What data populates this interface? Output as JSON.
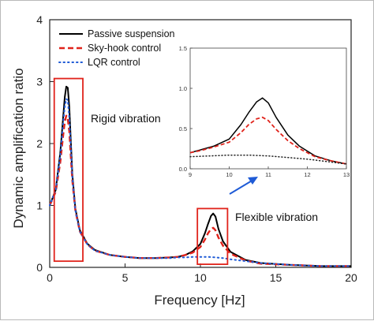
{
  "chart_data": [
    {
      "type": "line",
      "xlabel": "Frequency [Hz]",
      "ylabel": "Dynamic amplification ratio",
      "xlim": [
        0,
        20
      ],
      "ylim": [
        0,
        4
      ],
      "x_ticks": [
        "0",
        "5",
        "10",
        "15",
        "20"
      ],
      "y_ticks": [
        "0",
        "1",
        "2",
        "3",
        "4"
      ],
      "grid": false,
      "legend_position": "top-left",
      "series": [
        {
          "name": "Passive suspension",
          "style": "solid",
          "color": "#000000",
          "x": [
            0,
            0.4,
            0.7,
            0.9,
            1.0,
            1.1,
            1.2,
            1.3,
            1.4,
            1.5,
            1.7,
            2.0,
            2.5,
            3,
            4,
            5,
            6,
            7,
            8,
            8.5,
            9,
            9.5,
            10,
            10.3,
            10.5,
            10.7,
            10.85,
            11.0,
            11.2,
            11.5,
            12,
            13,
            14,
            16,
            18,
            20
          ],
          "y": [
            1.0,
            1.25,
            1.85,
            2.45,
            2.75,
            2.92,
            2.9,
            2.6,
            2.05,
            1.5,
            0.95,
            0.6,
            0.38,
            0.28,
            0.2,
            0.17,
            0.15,
            0.15,
            0.16,
            0.17,
            0.2,
            0.26,
            0.38,
            0.55,
            0.7,
            0.83,
            0.87,
            0.82,
            0.62,
            0.42,
            0.25,
            0.12,
            0.07,
            0.04,
            0.02,
            0.02
          ]
        },
        {
          "name": "Sky-hook control",
          "style": "dashed",
          "color": "#e0231b",
          "x": [
            0,
            0.4,
            0.7,
            0.9,
            1.0,
            1.1,
            1.2,
            1.3,
            1.4,
            1.5,
            1.7,
            2.0,
            2.5,
            3,
            4,
            5,
            6,
            7,
            8,
            8.5,
            9,
            9.5,
            10,
            10.3,
            10.5,
            10.7,
            10.85,
            11.0,
            11.2,
            11.5,
            12,
            13,
            14,
            16,
            18,
            20
          ],
          "y": [
            1.0,
            1.22,
            1.7,
            2.15,
            2.35,
            2.45,
            2.4,
            2.2,
            1.8,
            1.4,
            0.92,
            0.58,
            0.37,
            0.27,
            0.2,
            0.17,
            0.15,
            0.15,
            0.16,
            0.17,
            0.2,
            0.24,
            0.33,
            0.45,
            0.55,
            0.62,
            0.64,
            0.6,
            0.48,
            0.35,
            0.22,
            0.11,
            0.06,
            0.04,
            0.02,
            0.02
          ]
        },
        {
          "name": "LQR control",
          "style": "dotted",
          "color": "#1f5bd6",
          "x": [
            0,
            0.4,
            0.7,
            0.9,
            1.0,
            1.1,
            1.2,
            1.3,
            1.4,
            1.5,
            1.7,
            2.0,
            2.5,
            3,
            4,
            5,
            6,
            7,
            8,
            8.5,
            9,
            9.5,
            10,
            10.5,
            11,
            11.5,
            12,
            13,
            14,
            16,
            18,
            20
          ],
          "y": [
            1.0,
            1.25,
            1.8,
            2.35,
            2.6,
            2.72,
            2.7,
            2.42,
            1.95,
            1.45,
            0.92,
            0.58,
            0.37,
            0.27,
            0.2,
            0.17,
            0.15,
            0.15,
            0.15,
            0.16,
            0.16,
            0.17,
            0.17,
            0.17,
            0.16,
            0.15,
            0.13,
            0.1,
            0.07,
            0.04,
            0.02,
            0.02
          ]
        }
      ],
      "annotations": [
        {
          "text": "Rigid vibration",
          "x_range": [
            0.3,
            2.2
          ],
          "y_range": [
            0.1,
            3.05
          ]
        },
        {
          "text": "Flexible vibration",
          "x_range": [
            9.8,
            11.8
          ],
          "y_range": [
            0.05,
            0.95
          ]
        }
      ]
    },
    {
      "type": "line",
      "inset": true,
      "xlim": [
        9,
        13
      ],
      "ylim": [
        0,
        1.5
      ],
      "x_ticks": [
        "9",
        "10",
        "11",
        "12",
        "13"
      ],
      "y_ticks": [
        "0.0",
        "0.5",
        "1.0",
        "1.5"
      ],
      "series": [
        {
          "style": "solid",
          "color": "#000000",
          "x": [
            9.0,
            9.3,
            9.6,
            10.0,
            10.3,
            10.5,
            10.7,
            10.85,
            11.0,
            11.2,
            11.5,
            11.8,
            12.2,
            12.6,
            13.0
          ],
          "y": [
            0.2,
            0.24,
            0.28,
            0.37,
            0.55,
            0.7,
            0.83,
            0.88,
            0.82,
            0.64,
            0.42,
            0.28,
            0.16,
            0.1,
            0.06
          ]
        },
        {
          "style": "dashed",
          "color": "#e0231b",
          "x": [
            9.0,
            9.3,
            9.6,
            10.0,
            10.3,
            10.5,
            10.7,
            10.85,
            11.0,
            11.2,
            11.5,
            11.8,
            12.2,
            12.6,
            13.0
          ],
          "y": [
            0.2,
            0.23,
            0.27,
            0.33,
            0.45,
            0.55,
            0.62,
            0.64,
            0.6,
            0.49,
            0.35,
            0.25,
            0.15,
            0.1,
            0.06
          ]
        },
        {
          "style": "dotted",
          "color": "#222222",
          "x": [
            9.0,
            9.5,
            10.0,
            10.5,
            11.0,
            11.5,
            12.0,
            12.5,
            13.0
          ],
          "y": [
            0.15,
            0.16,
            0.17,
            0.17,
            0.16,
            0.14,
            0.12,
            0.09,
            0.06
          ]
        }
      ]
    }
  ]
}
